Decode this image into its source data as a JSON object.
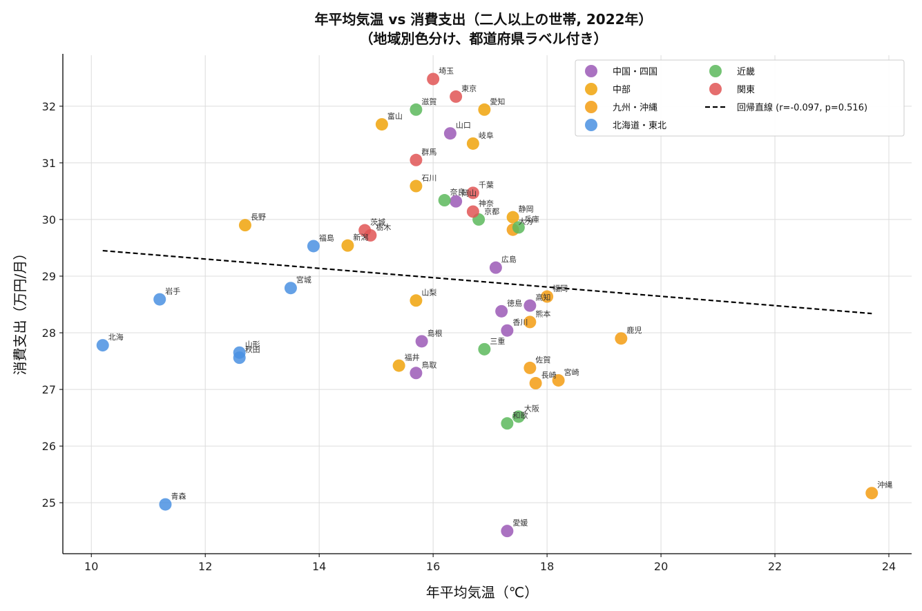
{
  "chart_data": {
    "type": "scatter",
    "title_line1": "年平均気温 vs 消費支出（二人以上の世帯, 2022年）",
    "title_line2": "（地域別色分け、都道府県ラベル付き）",
    "xlabel": "年平均気温（℃）",
    "ylabel": "消費支出（万円/月）",
    "xlim": [
      9.5,
      24.4
    ],
    "ylim": [
      24.1,
      32.9
    ],
    "xticks": [
      10,
      12,
      14,
      16,
      18,
      20,
      22,
      24
    ],
    "yticks": [
      25,
      26,
      27,
      28,
      29,
      30,
      31,
      32
    ],
    "grid": true,
    "legend_position": "top-right",
    "series": [
      {
        "name": "中国・四国",
        "color": "#9b59b6",
        "points": [
          {
            "label": "山口",
            "x": 16.3,
            "y": 31.52
          },
          {
            "label": "岡山",
            "x": 16.4,
            "y": 30.32
          },
          {
            "label": "広島",
            "x": 17.1,
            "y": 29.15
          },
          {
            "label": "徳島",
            "x": 17.2,
            "y": 28.38
          },
          {
            "label": "高知",
            "x": 17.7,
            "y": 28.48
          },
          {
            "label": "香川",
            "x": 17.3,
            "y": 28.04
          },
          {
            "label": "島根",
            "x": 15.8,
            "y": 27.85
          },
          {
            "label": "鳥取",
            "x": 15.7,
            "y": 27.29
          },
          {
            "label": "愛媛",
            "x": 17.3,
            "y": 24.5
          }
        ]
      },
      {
        "name": "中部",
        "color": "#f0a30a",
        "points": [
          {
            "label": "愛知",
            "x": 16.9,
            "y": 31.94
          },
          {
            "label": "富山",
            "x": 15.1,
            "y": 31.68
          },
          {
            "label": "岐阜",
            "x": 16.7,
            "y": 31.34
          },
          {
            "label": "石川",
            "x": 15.7,
            "y": 30.59
          },
          {
            "label": "静岡",
            "x": 17.4,
            "y": 30.04
          },
          {
            "label": "長野",
            "x": 12.7,
            "y": 29.9
          },
          {
            "label": "新潟",
            "x": 14.5,
            "y": 29.54
          },
          {
            "label": "山梨",
            "x": 15.7,
            "y": 28.57
          },
          {
            "label": "福井",
            "x": 15.4,
            "y": 27.42
          }
        ]
      },
      {
        "name": "九州・沖縄",
        "color": "#f39c12",
        "points": [
          {
            "label": "大分",
            "x": 17.4,
            "y": 29.82
          },
          {
            "label": "福岡",
            "x": 18.0,
            "y": 28.64
          },
          {
            "label": "熊本",
            "x": 17.7,
            "y": 28.19
          },
          {
            "label": "鹿児",
            "x": 19.3,
            "y": 27.9
          },
          {
            "label": "佐賀",
            "x": 17.7,
            "y": 27.38
          },
          {
            "label": "宮崎",
            "x": 18.2,
            "y": 27.16
          },
          {
            "label": "長崎",
            "x": 17.8,
            "y": 27.11
          },
          {
            "label": "沖縄",
            "x": 23.7,
            "y": 25.17
          }
        ]
      },
      {
        "name": "北海道・東北",
        "color": "#4a90e2",
        "points": [
          {
            "label": "福島",
            "x": 13.9,
            "y": 29.53
          },
          {
            "label": "宮城",
            "x": 13.5,
            "y": 28.79
          },
          {
            "label": "岩手",
            "x": 11.2,
            "y": 28.59
          },
          {
            "label": "北海",
            "x": 10.2,
            "y": 27.78
          },
          {
            "label": "山形",
            "x": 12.6,
            "y": 27.65
          },
          {
            "label": "秋田",
            "x": 12.6,
            "y": 27.56
          },
          {
            "label": "青森",
            "x": 11.3,
            "y": 24.97
          }
        ]
      },
      {
        "name": "近畿",
        "color": "#5cb85c",
        "points": [
          {
            "label": "滋賀",
            "x": 15.7,
            "y": 31.94
          },
          {
            "label": "奈良",
            "x": 16.2,
            "y": 30.34
          },
          {
            "label": "京都",
            "x": 16.8,
            "y": 30.0
          },
          {
            "label": "兵庫",
            "x": 17.5,
            "y": 29.86
          },
          {
            "label": "三重",
            "x": 16.9,
            "y": 27.71
          },
          {
            "label": "大阪",
            "x": 17.5,
            "y": 26.52
          },
          {
            "label": "和歌",
            "x": 17.3,
            "y": 26.4
          }
        ]
      },
      {
        "name": "関東",
        "color": "#e05555",
        "points": [
          {
            "label": "埼玉",
            "x": 16.0,
            "y": 32.48
          },
          {
            "label": "東京",
            "x": 16.4,
            "y": 32.17
          },
          {
            "label": "群馬",
            "x": 15.7,
            "y": 31.05
          },
          {
            "label": "千葉",
            "x": 16.7,
            "y": 30.47
          },
          {
            "label": "神奈",
            "x": 16.7,
            "y": 30.14
          },
          {
            "label": "茨城",
            "x": 14.8,
            "y": 29.81
          },
          {
            "label": "栃木",
            "x": 14.9,
            "y": 29.72
          }
        ]
      }
    ],
    "regression": {
      "name": "回帰直線 (r=-0.097, p=0.516)",
      "color": "#000000",
      "x": [
        10.2,
        23.7
      ],
      "y": [
        29.45,
        28.34
      ]
    }
  }
}
